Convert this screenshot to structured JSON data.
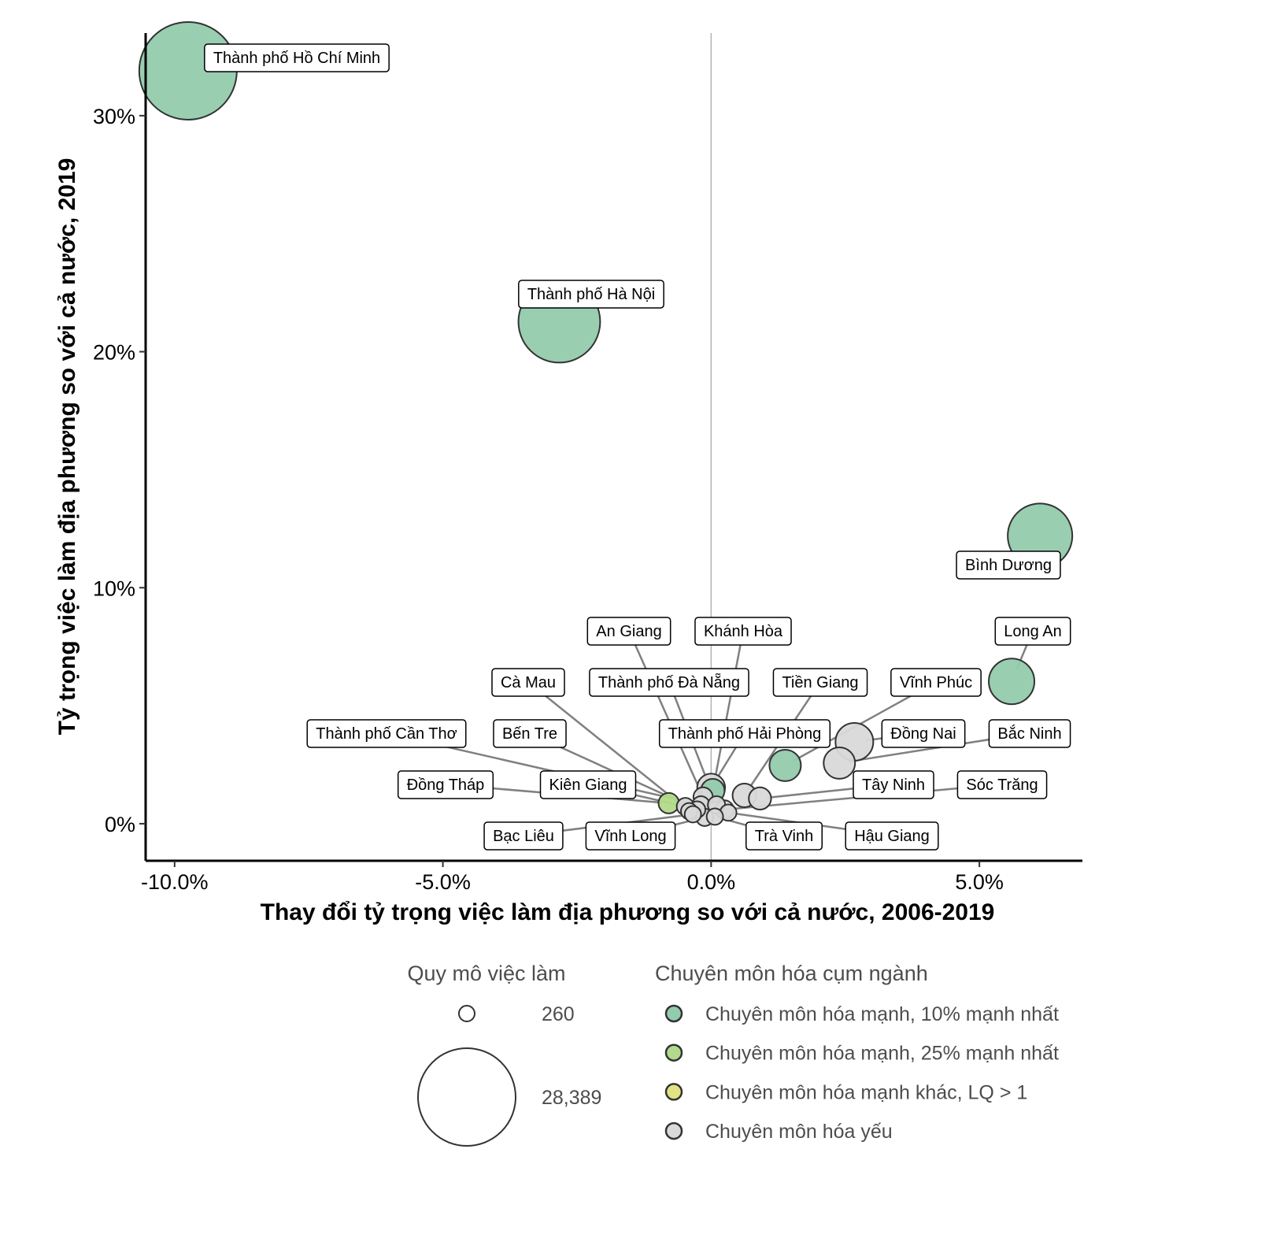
{
  "chart_data": {
    "type": "scatter",
    "xlabel": "Thay đổi tỷ trọng việc làm địa phương so với cả nước, 2006-2019",
    "ylabel": "Tỷ trọng việc làm địa phương so với cả nước, 2019",
    "xlim": [
      -10.54,
      6.92
    ],
    "ylim": [
      -1.57,
      33.5
    ],
    "x_ticks": [
      {
        "v": -10,
        "label": "-10.0%"
      },
      {
        "v": -5,
        "label": "-5.0%"
      },
      {
        "v": 0,
        "label": "0.0%"
      },
      {
        "v": 5,
        "label": "5.0%"
      }
    ],
    "y_ticks": [
      {
        "v": 0,
        "label": "0%"
      },
      {
        "v": 10,
        "label": "10%"
      },
      {
        "v": 20,
        "label": "20%"
      },
      {
        "v": 30,
        "label": "30%"
      }
    ],
    "grid": false,
    "reference_line_x": 0,
    "categories": [
      {
        "key": "top10",
        "label": "Chuyên môn hóa mạnh, 10% mạnh nhất",
        "color": "#93cbad"
      },
      {
        "key": "top25",
        "label": "Chuyên môn hóa mạnh, 25% mạnh nhất",
        "color": "#b2da8a"
      },
      {
        "key": "other",
        "label": "Chuyên môn hóa mạnh khác, LQ > 1",
        "color": "#e1e283"
      },
      {
        "key": "weak",
        "label": "Chuyên môn hóa yếu",
        "color": "#d9d9d9"
      }
    ],
    "size_legend": {
      "title": "Quy mô việc làm",
      "min": 260,
      "min_label": "260",
      "max": 28389,
      "max_label": "28,389"
    },
    "color_legend_title": "Chuyên môn hóa cụm ngành",
    "points": [
      {
        "name": "Thành phố Hồ Chí Minh",
        "x": -9.75,
        "y": 31.9,
        "size": 28389,
        "cat": "top10"
      },
      {
        "name": "Thành phố Hà Nội",
        "x": -2.83,
        "y": 21.27,
        "size": 19300,
        "cat": "top10"
      },
      {
        "name": "Bình Dương",
        "x": 6.13,
        "y": 12.2,
        "size": 11450,
        "cat": "top10"
      },
      {
        "name": "Long An",
        "x": 5.6,
        "y": 6.03,
        "size": 5150,
        "cat": "top10"
      },
      {
        "name": "Vĩnh Phúc",
        "x": 1.38,
        "y": 2.47,
        "size": 2060,
        "cat": "top10"
      },
      {
        "name": "Đồng Nai",
        "x": 2.67,
        "y": 3.47,
        "size": 3260,
        "cat": "weak"
      },
      {
        "name": "Bắc Ninh",
        "x": 2.39,
        "y": 2.57,
        "size": 2060,
        "cat": "weak"
      },
      {
        "name": "Thành phố Hải Phòng",
        "x": 0.0,
        "y": 1.53,
        "size": 1500,
        "cat": "weak"
      },
      {
        "name": "Khánh Hòa",
        "x": 0.03,
        "y": 1.4,
        "size": 950,
        "cat": "top10"
      },
      {
        "name": "Tiền Giang",
        "x": 0.62,
        "y": 1.2,
        "size": 950,
        "cat": "weak"
      },
      {
        "name": "Tây Ninh",
        "x": 0.91,
        "y": 1.07,
        "size": 800,
        "cat": "weak"
      },
      {
        "name": "Đồng Tháp",
        "x": -0.79,
        "y": 0.87,
        "size": 620,
        "cat": "top25"
      },
      {
        "name": "An Giang",
        "x": -0.15,
        "y": 1.13,
        "size": 520,
        "cat": "weak"
      },
      {
        "name": "Thành phố Cần Thơ",
        "x": -0.19,
        "y": 0.8,
        "size": 360,
        "cat": "weak"
      },
      {
        "name": "Kiên Giang",
        "x": -0.48,
        "y": 0.73,
        "size": 360,
        "cat": "weak"
      },
      {
        "name": "Thành phố Đà Nẵng",
        "x": 0.1,
        "y": 0.8,
        "size": 360,
        "cat": "weak"
      },
      {
        "name": "Bến Tre",
        "x": -0.26,
        "y": 0.6,
        "size": 300,
        "cat": "weak"
      },
      {
        "name": "Cà Mau",
        "x": -0.41,
        "y": 0.53,
        "size": 300,
        "cat": "weak"
      },
      {
        "name": "Sóc Trăng",
        "x": 0.25,
        "y": 0.6,
        "size": 440,
        "cat": "weak"
      },
      {
        "name": "Hậu Giang",
        "x": 0.32,
        "y": 0.47,
        "size": 300,
        "cat": "weak"
      },
      {
        "name": "Bạc Liêu",
        "x": -0.34,
        "y": 0.4,
        "size": 300,
        "cat": "weak"
      },
      {
        "name": "Vĩnh Long",
        "x": -0.12,
        "y": 0.27,
        "size": 360,
        "cat": "weak"
      },
      {
        "name": "Trà Vinh",
        "x": 0.07,
        "y": 0.3,
        "size": 300,
        "cat": "weak"
      }
    ]
  }
}
